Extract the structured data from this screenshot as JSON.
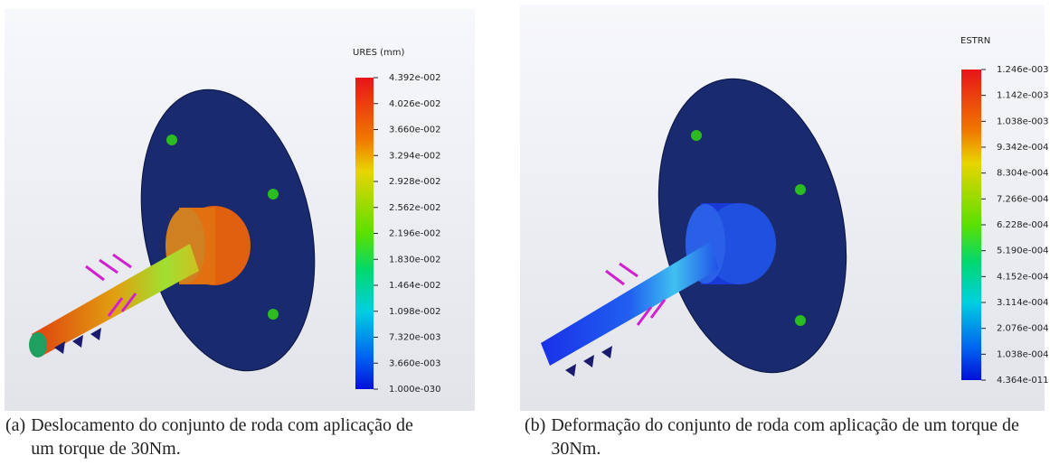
{
  "panels": [
    {
      "legend_title": "URES (mm)",
      "legend_labels": [
        "4.392e-002",
        "4.026e-002",
        "3.660e-002",
        "3.294e-002",
        "2.928e-002",
        "2.562e-002",
        "2.196e-002",
        "1.830e-002",
        "1.464e-002",
        "1.098e-002",
        "7.320e-003",
        "3.660e-003",
        "1.000e-030"
      ],
      "caption_label": "(a)",
      "caption": "Deslocamento do conjunto de roda com aplicação de um torque de 30Nm."
    },
    {
      "legend_title": "ESTRN",
      "legend_labels": [
        "1.246e-003",
        "1.142e-003",
        "1.038e-003",
        "9.342e-004",
        "8.304e-004",
        "7.266e-004",
        "6.228e-004",
        "5.190e-004",
        "4.152e-004",
        "3.114e-004",
        "2.076e-004",
        "1.038e-004",
        "4.364e-011"
      ],
      "caption_label": "(b)",
      "caption": "Deformação do conjunto de roda com aplicação de um torque de 30Nm."
    }
  ]
}
